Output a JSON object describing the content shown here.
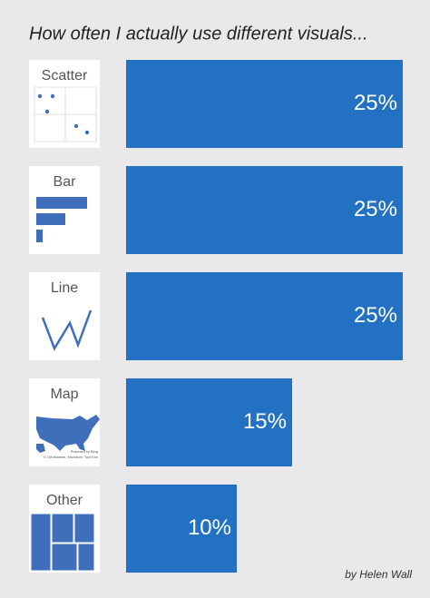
{
  "chart_data": {
    "type": "bar",
    "orientation": "horizontal",
    "title": "How often I actually use different visuals...",
    "categories": [
      "Scatter",
      "Bar",
      "Line",
      "Map",
      "Other"
    ],
    "values": [
      25,
      25,
      25,
      15,
      10
    ],
    "value_labels": [
      "25%",
      "25%",
      "25%",
      "15%",
      "10%"
    ],
    "color": "#2271c3",
    "map_credits": [
      "Powered by Bing",
      "© GeoNames, Microsoft, TomTom"
    ],
    "caption": "by Helen Wall"
  }
}
